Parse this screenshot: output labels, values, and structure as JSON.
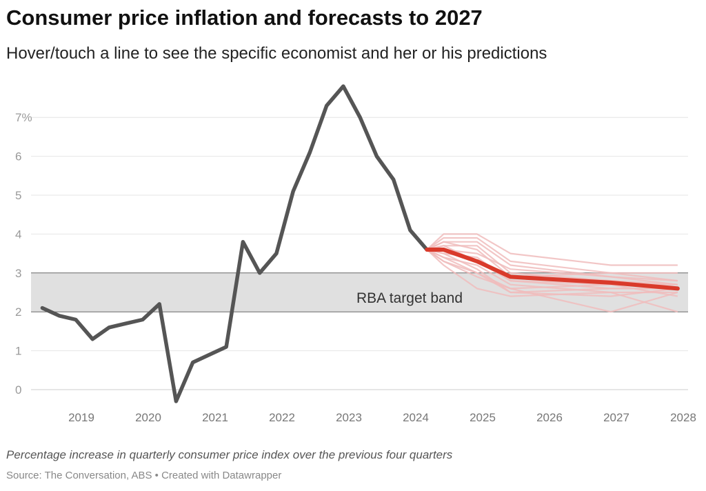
{
  "title": "Consumer price inflation and forecasts to 2027",
  "subtitle": "Hover/touch a line to see the specific economist and her or his predictions",
  "note": "Percentage increase in quarterly consumer price index over the previous four quarters",
  "source": "Source: The Conversation, ABS • Created with Datawrapper",
  "chart_data": {
    "type": "line",
    "title": "Consumer price inflation and forecasts to 2027",
    "ylim": [
      -0.4,
      7.8
    ],
    "y_ticks": [
      0,
      1,
      2,
      3,
      4,
      5,
      6,
      7
    ],
    "y_tick_labels": [
      "0",
      "1",
      "2",
      "3",
      "4",
      "5",
      "6",
      "7%"
    ],
    "x_ticks": [
      "2019",
      "2020",
      "2021",
      "2022",
      "2023",
      "2024",
      "2025",
      "2026",
      "2027",
      "2028"
    ],
    "grid": true,
    "band": {
      "label": "RBA target band",
      "from": 2,
      "to": 3,
      "color": "#e0e0e0"
    },
    "colors": {
      "actual": "#555555",
      "median_forecast": "#d93a2b",
      "economist_forecast": "#f0bcbc"
    },
    "series": [
      {
        "role": "actual",
        "x": [
          "2018-06",
          "2018-09",
          "2018-12",
          "2019-03",
          "2019-06",
          "2019-09",
          "2019-12",
          "2020-03",
          "2020-06",
          "2020-09",
          "2020-12",
          "2021-03",
          "2021-06",
          "2021-09",
          "2021-12",
          "2022-03",
          "2022-06",
          "2022-09",
          "2022-12",
          "2023-03",
          "2023-06",
          "2023-09",
          "2023-12",
          "2024-03"
        ],
        "values": [
          2.1,
          1.9,
          1.8,
          1.3,
          1.6,
          1.7,
          1.8,
          2.2,
          -0.3,
          0.7,
          0.9,
          1.1,
          3.8,
          3.0,
          3.5,
          5.1,
          6.1,
          7.3,
          7.8,
          7.0,
          6.0,
          5.4,
          4.1,
          3.6
        ]
      },
      {
        "role": "median_forecast",
        "x": [
          "2024-03",
          "2024-06",
          "2024-12",
          "2025-06",
          "2025-12",
          "2026-12",
          "2027-12"
        ],
        "values": [
          3.6,
          3.6,
          3.3,
          2.9,
          2.85,
          2.75,
          2.6
        ]
      }
    ],
    "economist_forecasts": {
      "x": [
        "2024-03",
        "2024-06",
        "2024-12",
        "2025-06",
        "2026-12",
        "2027-12"
      ],
      "lines": [
        [
          3.6,
          4.0,
          4.0,
          3.5,
          3.2,
          3.2
        ],
        [
          3.6,
          3.9,
          3.9,
          3.3,
          3.0,
          2.8
        ],
        [
          3.6,
          3.8,
          3.8,
          3.2,
          2.9,
          2.7
        ],
        [
          3.6,
          3.7,
          3.7,
          3.0,
          2.8,
          2.7
        ],
        [
          3.6,
          3.8,
          3.6,
          2.9,
          3.0,
          3.0
        ],
        [
          3.6,
          3.5,
          3.4,
          2.8,
          2.6,
          2.6
        ],
        [
          3.6,
          3.4,
          3.2,
          2.7,
          2.5,
          2.5
        ],
        [
          3.6,
          3.3,
          3.0,
          2.5,
          2.6,
          2.6
        ],
        [
          3.6,
          3.2,
          2.6,
          2.4,
          2.5,
          2.0
        ],
        [
          3.6,
          3.3,
          2.9,
          2.6,
          2.0,
          2.5
        ],
        [
          3.6,
          3.5,
          3.1,
          2.5,
          2.4,
          2.6
        ],
        [
          3.6,
          3.6,
          3.5,
          3.1,
          2.9,
          2.8
        ],
        [
          3.6,
          3.7,
          3.3,
          2.8,
          2.7,
          2.7
        ],
        [
          3.6,
          3.4,
          3.0,
          2.6,
          2.7,
          2.4
        ]
      ]
    }
  }
}
